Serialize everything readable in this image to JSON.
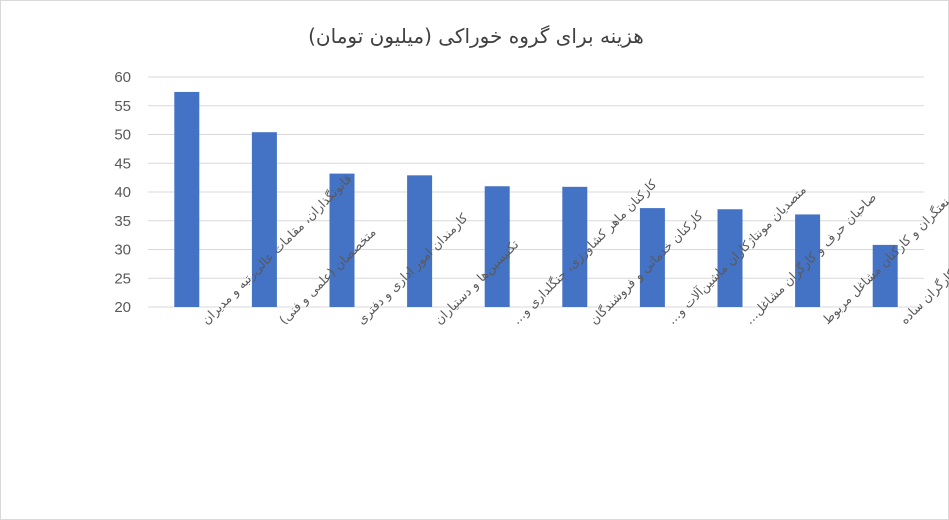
{
  "chart_data": {
    "type": "bar",
    "title": "هزینه برای گروه خوراکی (میلیون تومان)",
    "xlabel": "",
    "ylabel": "",
    "ylim": [
      20,
      60
    ],
    "yticks": [
      20,
      25,
      30,
      35,
      40,
      45,
      50,
      55,
      60
    ],
    "grid": true,
    "legend": "none",
    "bar_color": "#4472c4",
    "categories": [
      "قانونگذاران، مقامات عالی‌رتبه و مدیران",
      "متخصصان (علمی و فنی)",
      "کارمندان امور اداری و دفتری",
      "تکنیسین‌ها و دستیاران",
      "کارکنان ماهر کشاورزی، جنگلداری و…",
      "کارکنان خدماتی و فروشندگان",
      "متصدیان مونتاژکاران ماشین‌آلات و…",
      "صاحبان حرف و کارگران مشاغل…",
      "صنعتگران و کارکنان مشاغل مربوط",
      "کارگران ساده"
    ],
    "values": [
      57.4,
      50.4,
      43.2,
      42.9,
      41.0,
      40.9,
      37.2,
      37.0,
      36.1,
      30.8
    ]
  }
}
